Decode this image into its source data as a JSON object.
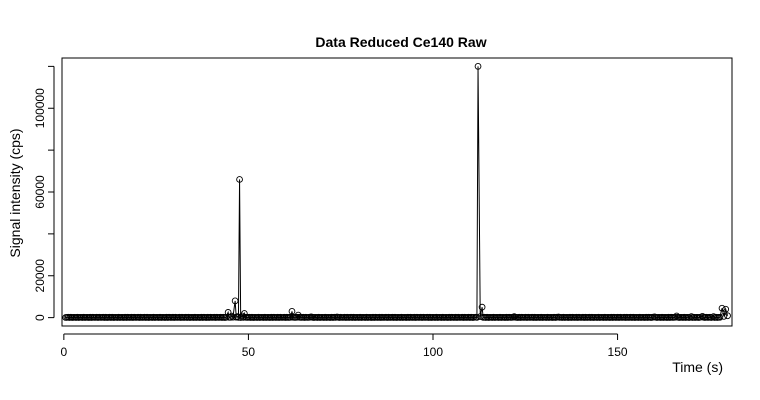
{
  "chart_data": {
    "type": "line",
    "title": "Data Reduced Ce140 Raw",
    "xlabel": "Time (s)",
    "ylabel": "Signal intensity (cps)",
    "xlim": [
      -0.5,
      181
    ],
    "ylim": [
      -4000,
      124000
    ],
    "xticks": [
      0,
      50,
      100,
      150
    ],
    "xtick_labels": [
      "0",
      "50",
      "100",
      "150"
    ],
    "yticks": [
      0,
      20000,
      60000,
      100000
    ],
    "ytick_labels": [
      "0",
      "20000",
      "60000",
      "100000"
    ],
    "yticks_unlabeled": [
      40000,
      80000,
      120000
    ],
    "grid": false,
    "legend": "none",
    "line_color": "#000000",
    "series": [
      {
        "x": [
          44.5,
          45.5,
          46.4,
          47.0,
          47.6,
          48.3,
          48.9,
          61.8,
          63.5,
          67.0,
          74.0,
          111.6,
          112.2,
          112.8,
          113.3,
          122.0,
          134.0,
          160.0,
          166.0,
          170.0,
          173.0,
          176.0,
          178.3,
          178.8,
          179.3,
          179.8
        ],
        "y": [
          2500,
          700,
          8000,
          500,
          66000,
          800,
          2000,
          3000,
          1200,
          400,
          300,
          200,
          120000,
          500,
          5000,
          500,
          300,
          400,
          800,
          500,
          600,
          500,
          4500,
          600,
          4000,
          900
        ]
      }
    ]
  }
}
